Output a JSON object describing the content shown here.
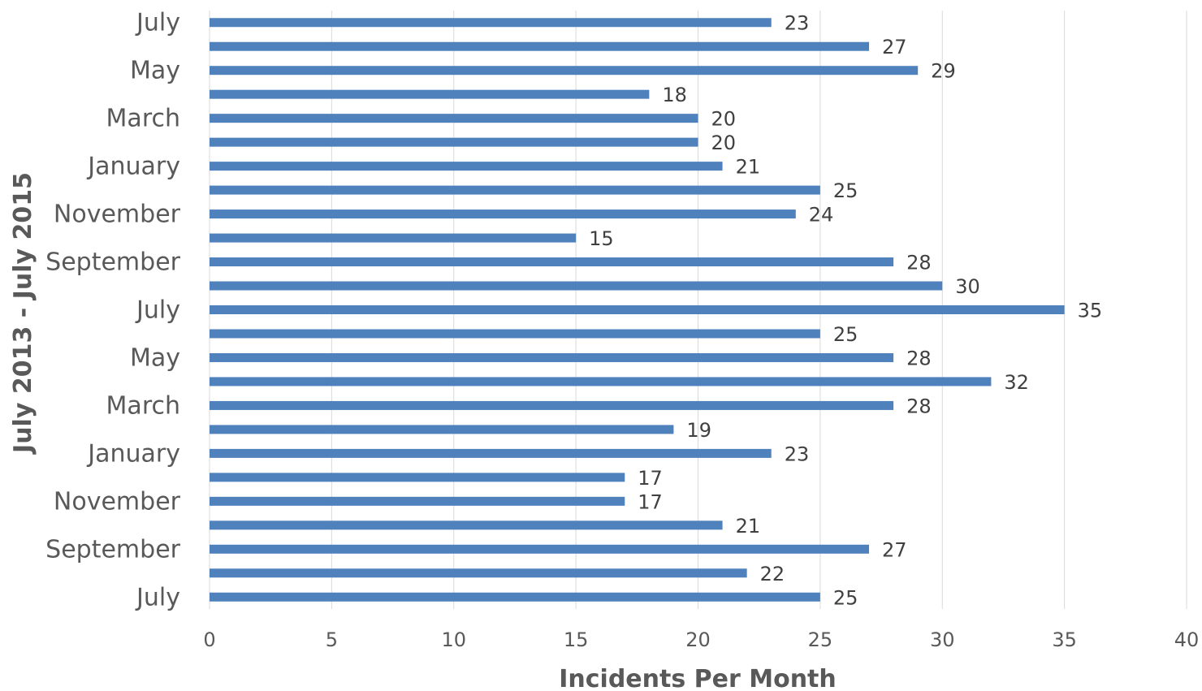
{
  "chart_data": {
    "type": "bar",
    "orientation": "horizontal",
    "title": "",
    "xlabel": "Incidents Per Month",
    "ylabel": "July 2013 - July 2015",
    "xlim": [
      0,
      40
    ],
    "x_ticks": [
      0,
      5,
      10,
      15,
      20,
      25,
      30,
      35,
      40
    ],
    "grid": true,
    "legend": "none",
    "bar_color": "#4f81bd",
    "categories": [
      "July",
      "",
      "September",
      "",
      "November",
      "",
      "January",
      "",
      "March",
      "",
      "May",
      "",
      "July",
      "",
      "September",
      "",
      "November",
      "",
      "January",
      "",
      "March",
      "",
      "May",
      "",
      "July"
    ],
    "values": [
      25,
      22,
      27,
      21,
      17,
      17,
      23,
      19,
      28,
      32,
      28,
      25,
      35,
      30,
      28,
      15,
      24,
      25,
      21,
      20,
      20,
      18,
      29,
      27,
      23
    ]
  }
}
